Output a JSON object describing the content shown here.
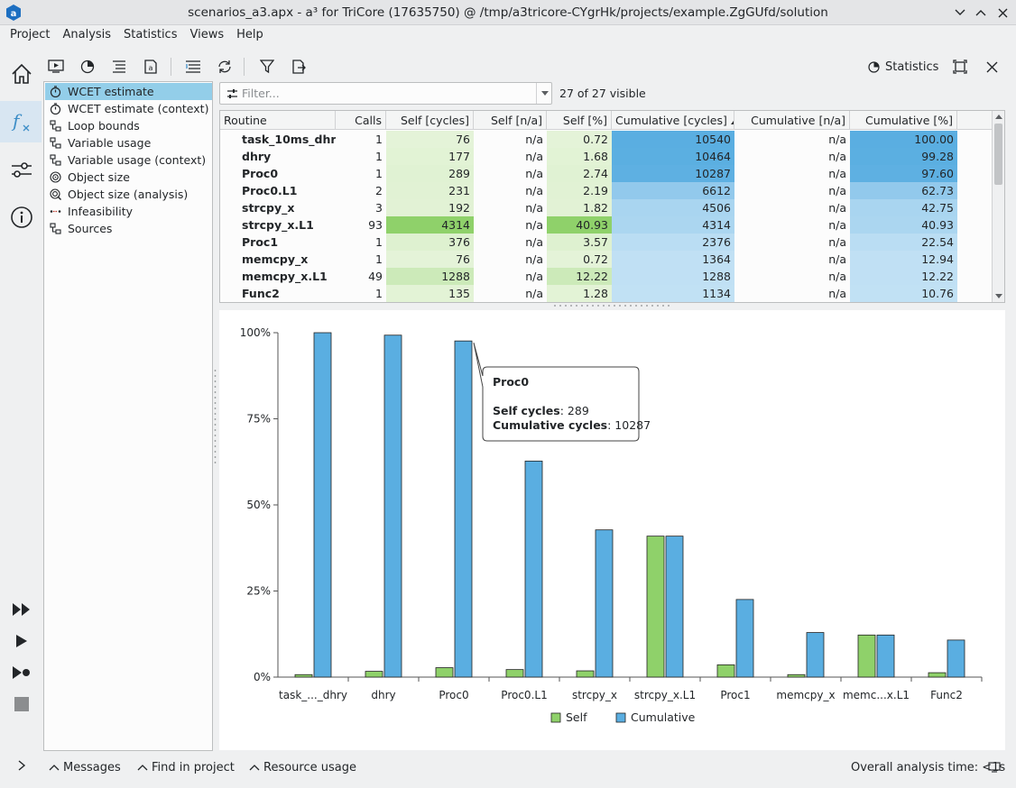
{
  "window": {
    "title": "scenarios_a3.apx - a³ for TriCore (17635750) @ /tmp/a3tricore-CYgrHk/projects/example.ZgGUfd/solution"
  },
  "menu": {
    "items": [
      "Project",
      "Analysis",
      "Statistics",
      "Views",
      "Help"
    ]
  },
  "toolbar": {
    "statistics_label": "Statistics"
  },
  "tree": {
    "items": [
      {
        "label": "WCET estimate",
        "icon": "stopwatch-icon"
      },
      {
        "label": "WCET estimate (context)",
        "icon": "stopwatch-icon"
      },
      {
        "label": "Loop bounds",
        "icon": "hierarchy-icon"
      },
      {
        "label": "Variable usage",
        "icon": "hierarchy-icon"
      },
      {
        "label": "Variable usage (context)",
        "icon": "hierarchy-icon"
      },
      {
        "label": "Object size",
        "icon": "target-icon"
      },
      {
        "label": "Object size (analysis)",
        "icon": "target-search-icon"
      },
      {
        "label": "Infeasibility",
        "icon": "dotted-line-icon"
      },
      {
        "label": "Sources",
        "icon": "hierarchy-icon"
      }
    ],
    "selected_index": 0
  },
  "filter": {
    "placeholder": "Filter...",
    "count_text": "27 of 27 visible"
  },
  "table": {
    "columns": [
      "Routine",
      "Calls",
      "Self [cycles]",
      "Self [n/a]",
      "Self [%]",
      "Cumulative [cycles]",
      "Cumulative [n/a]",
      "Cumulative [%]"
    ],
    "sorted_column_index": 5,
    "rows": [
      [
        "task_10ms_dhry",
        "1",
        "76",
        "n/a",
        "0.72",
        "10540",
        "n/a",
        "100.00"
      ],
      [
        "dhry",
        "1",
        "177",
        "n/a",
        "1.68",
        "10464",
        "n/a",
        "99.28"
      ],
      [
        "Proc0",
        "1",
        "289",
        "n/a",
        "2.74",
        "10287",
        "n/a",
        "97.60"
      ],
      [
        "Proc0.L1",
        "2",
        "231",
        "n/a",
        "2.19",
        "6612",
        "n/a",
        "62.73"
      ],
      [
        "strcpy_x",
        "3",
        "192",
        "n/a",
        "1.82",
        "4506",
        "n/a",
        "42.75"
      ],
      [
        "strcpy_x.L1",
        "93",
        "4314",
        "n/a",
        "40.93",
        "4314",
        "n/a",
        "40.93"
      ],
      [
        "Proc1",
        "1",
        "376",
        "n/a",
        "3.57",
        "2376",
        "n/a",
        "22.54"
      ],
      [
        "memcpy_x",
        "1",
        "76",
        "n/a",
        "0.72",
        "1364",
        "n/a",
        "12.94"
      ],
      [
        "memcpy_x.L1",
        "49",
        "1288",
        "n/a",
        "12.22",
        "1288",
        "n/a",
        "12.22"
      ],
      [
        "Func2",
        "1",
        "135",
        "n/a",
        "1.28",
        "1134",
        "n/a",
        "10.76"
      ]
    ]
  },
  "chart_data": {
    "type": "bar",
    "categories": [
      "task_..._dhry",
      "dhry",
      "Proc0",
      "Proc0.L1",
      "strcpy_x",
      "strcpy_x.L1",
      "Proc1",
      "memcpy_x",
      "memc...x.L1",
      "Func2"
    ],
    "series": [
      {
        "name": "Self",
        "color": "#8fd16a",
        "values": [
          0.72,
          1.68,
          2.74,
          2.19,
          1.82,
          40.93,
          3.57,
          0.72,
          12.22,
          1.28
        ]
      },
      {
        "name": "Cumulative",
        "color": "#5aaee1",
        "values": [
          100.0,
          99.28,
          97.6,
          62.73,
          42.75,
          40.93,
          22.54,
          12.94,
          12.22,
          10.76
        ]
      }
    ],
    "ylim": [
      0,
      100
    ],
    "yticks": [
      "0%",
      "25%",
      "50%",
      "75%",
      "100%"
    ],
    "legend": "bottom-center",
    "grid": false
  },
  "tooltip": {
    "title": "Proc0",
    "self_label": "Self cycles",
    "self_value": ": 289",
    "cum_label": "Cumulative cycles",
    "cum_value": ": 10287"
  },
  "statusbar": {
    "tabs": [
      "Messages",
      "Find in project",
      "Resource usage"
    ],
    "analysis_time": "Overall analysis time: <1s"
  }
}
